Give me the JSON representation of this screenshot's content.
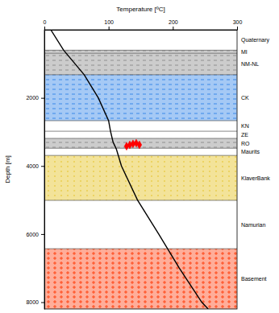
{
  "chart_data": {
    "type": "line",
    "title": "Temperature [ºC]",
    "y_label": "Depth [m]",
    "xlim": [
      0,
      300
    ],
    "xticks": [
      0,
      100,
      200,
      300
    ],
    "ylim": [
      0,
      8200
    ],
    "yticks": [
      2000,
      4000,
      6000,
      8000
    ],
    "grid": false,
    "series": [
      {
        "type": "line",
        "color": "#000000",
        "marker": "none",
        "line_style": "solid",
        "x": [
          10,
          30,
          62,
          84,
          100,
          103,
          107,
          112,
          120,
          145,
          178,
          210,
          245,
          255
        ],
        "values": [
          0,
          600,
          1320,
          2000,
          2670,
          2980,
          3300,
          3500,
          4000,
          5000,
          6000,
          7000,
          8000,
          8200
        ]
      },
      {
        "type": "scatter",
        "color": "#ff0000",
        "marker": "diamond",
        "x": [
          128,
          133,
          138,
          143,
          148
        ],
        "values": [
          3420,
          3380,
          3350,
          3330,
          3380
        ]
      }
    ],
    "layers": [
      {
        "name": "Quaternary",
        "top": 0,
        "bottom": 600,
        "color": "#ffffff",
        "marker": "none"
      },
      {
        "name": "MI",
        "top": 600,
        "bottom": 690,
        "color": "#808080",
        "marker": "dash"
      },
      {
        "name": "NM-NL",
        "top": 690,
        "bottom": 1320,
        "color": "#808080",
        "marker": "dash"
      },
      {
        "name": "CK",
        "top": 1320,
        "bottom": 2670,
        "color": "#1e78e6",
        "marker": "dash"
      },
      {
        "name": "KN",
        "top": 2670,
        "bottom": 2980,
        "color": "#ffffff",
        "marker": "none"
      },
      {
        "name": "ZE",
        "top": 2980,
        "bottom": 3190,
        "color": "#ffffff",
        "marker": "none"
      },
      {
        "name": "RO",
        "top": 3190,
        "bottom": 3480,
        "color": "#808080",
        "marker": "dash"
      },
      {
        "name": "Maurits",
        "top": 3480,
        "bottom": 3690,
        "color": "#ffffff",
        "marker": "none"
      },
      {
        "name": "KlaverBank",
        "top": 3690,
        "bottom": 5010,
        "color": "#e0b800",
        "marker": "dot"
      },
      {
        "name": "Namurian",
        "top": 5010,
        "bottom": 6430,
        "color": "#ffffff",
        "marker": "none"
      },
      {
        "name": "Basement",
        "top": 6430,
        "bottom": 8200,
        "color": "#ff3300",
        "marker": "plus"
      }
    ]
  }
}
